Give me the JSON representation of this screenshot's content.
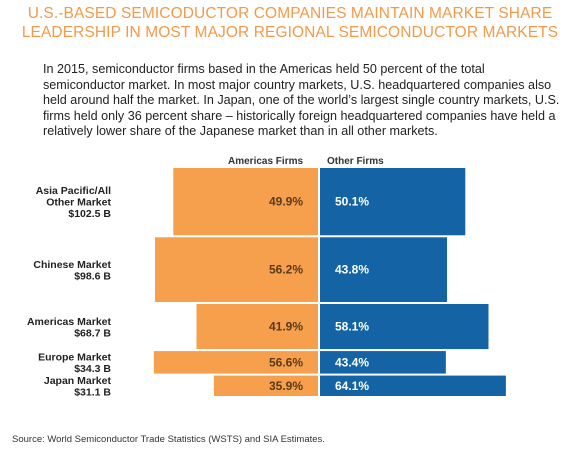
{
  "title_lines": [
    "U.S.-BASED SEMICODUCTOR COMPANIES MAINTAIN MARKET SHARE",
    "LEADERSHIP IN MOST MAJOR REGIONAL SEMICONDUCTOR MARKETS"
  ],
  "description": "In 2015, semiconductor firms based in the Americas held 50 percent of the total semiconductor market.  In most major country markets, U.S. headquartered companies also held around half the market.  In Japan, one of the world’s largest single country markets, U.S. firms held only 36 percent share – historically foreign headquartered companies have held a relatively lower share of the Japanese market than in all other markets.",
  "source": "Source: World Semiconductor Trade Statistics (WSTS) and SIA Estimates.",
  "colors": {
    "americas": "#f6a04d",
    "other": "#1464a5",
    "title": "#f39a4a",
    "americas_text": "#5a3a1a",
    "other_text": "#ffffff"
  },
  "chart_data": {
    "type": "bar",
    "layout": "diverging-variable-width",
    "legend": [
      "Americas Firms",
      "Other Firms"
    ],
    "categories": [
      {
        "lines": [
          "Asia Pacific/All",
          "Other Market",
          "$102.5 B"
        ],
        "market": "Asia Pacific/All Other Market",
        "size_b": 102.5,
        "americas": 49.9,
        "other": 50.1
      },
      {
        "lines": [
          "Chinese Market",
          "$98.6 B"
        ],
        "market": "Chinese Market",
        "size_b": 98.6,
        "americas": 56.2,
        "other": 43.8
      },
      {
        "lines": [
          "Americas Market",
          "$68.7 B"
        ],
        "market": "Americas Market",
        "size_b": 68.7,
        "americas": 41.9,
        "other": 58.1
      },
      {
        "lines": [
          "Europe Market",
          "$34.3 B"
        ],
        "market": "Europe Market",
        "size_b": 34.3,
        "americas": 56.6,
        "other": 43.4
      },
      {
        "lines": [
          "Japan Market",
          "$31.1 B"
        ],
        "market": "Japan Market",
        "size_b": 31.1,
        "americas": 35.9,
        "other": 64.1
      }
    ],
    "series": [
      {
        "name": "Americas Firms",
        "values": [
          49.9,
          56.2,
          41.9,
          56.6,
          35.9
        ]
      },
      {
        "name": "Other Firms",
        "values": [
          50.1,
          43.8,
          58.1,
          43.4,
          64.1
        ]
      }
    ]
  }
}
